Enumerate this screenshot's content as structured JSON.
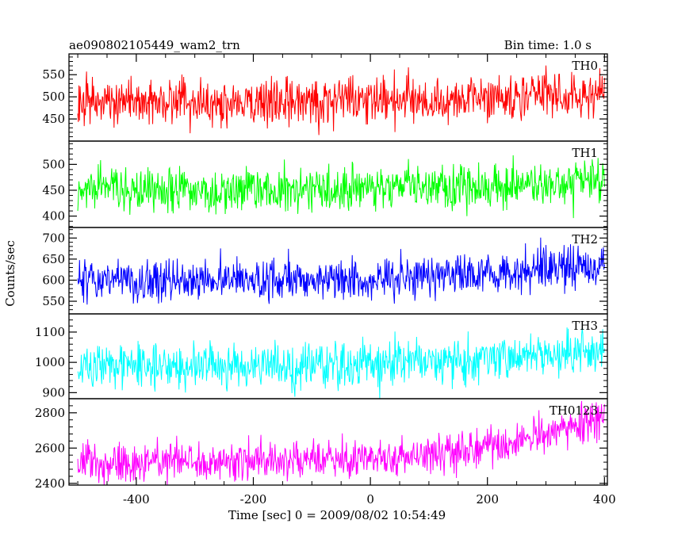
{
  "chart_data": {
    "type": "line",
    "title": "ae090802105449_wam2_trn",
    "bin_label": "Bin time: 1.0 s",
    "xlabel": "Time [sec] 0 = 2009/08/02 10:54:49",
    "ylabel": "Counts/sec",
    "xlim": [
      -515,
      405
    ],
    "xticks": [
      -400,
      -200,
      0,
      200,
      400
    ],
    "x_start": -500,
    "x_end": 400,
    "x_step": 1,
    "background": "#ffffff",
    "grid": false,
    "panels": [
      {
        "name": "TH0",
        "color": "#ff0000",
        "ylim": [
          400,
          597
        ],
        "yticks": [
          450,
          500,
          550
        ],
        "trend": [
          [
            -500,
            488
          ],
          [
            -200,
            488
          ],
          [
            0,
            490
          ],
          [
            200,
            497
          ],
          [
            400,
            510
          ]
        ],
        "noise": 27
      },
      {
        "name": "TH1",
        "color": "#00ff00",
        "ylim": [
          378,
          545
        ],
        "yticks": [
          400,
          450,
          500
        ],
        "trend": [
          [
            -500,
            452
          ],
          [
            -200,
            451
          ],
          [
            0,
            452
          ],
          [
            200,
            458
          ],
          [
            300,
            462
          ],
          [
            400,
            472
          ]
        ],
        "noise": 22
      },
      {
        "name": "TH2",
        "color": "#0000ff",
        "ylim": [
          520,
          725
        ],
        "yticks": [
          550,
          600,
          650,
          700
        ],
        "trend": [
          [
            -500,
            600
          ],
          [
            -200,
            601
          ],
          [
            0,
            603
          ],
          [
            200,
            615
          ],
          [
            300,
            628
          ],
          [
            400,
            640
          ]
        ],
        "noise": 25
      },
      {
        "name": "TH3",
        "color": "#00ffff",
        "ylim": [
          880,
          1160
        ],
        "yticks": [
          900,
          1000,
          1100
        ],
        "trend": [
          [
            -500,
            990
          ],
          [
            -200,
            991
          ],
          [
            0,
            993
          ],
          [
            200,
            1010
          ],
          [
            300,
            1025
          ],
          [
            400,
            1055
          ]
        ],
        "noise": 38
      },
      {
        "name": "TH0123",
        "color": "#ff00ff",
        "ylim": [
          2390,
          2880
        ],
        "yticks": [
          2400,
          2600,
          2800
        ],
        "trend": [
          [
            -500,
            2520
          ],
          [
            -200,
            2530
          ],
          [
            0,
            2545
          ],
          [
            100,
            2560
          ],
          [
            200,
            2610
          ],
          [
            300,
            2680
          ],
          [
            400,
            2760
          ]
        ],
        "noise": 55
      }
    ]
  }
}
